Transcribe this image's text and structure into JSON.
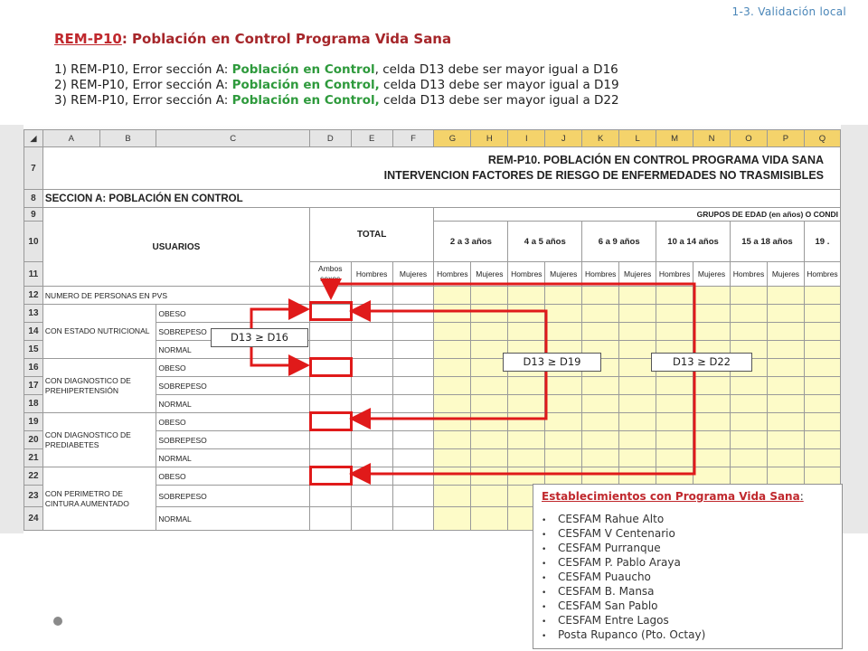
{
  "breadcrumb": "1-3. Validación local",
  "title": {
    "code": "REM-P10",
    "text": ": Población en Control Programa Vida Sana"
  },
  "errors": [
    {
      "prefix": "1) REM-P10, Error sección A: ",
      "highlight": "Población en Control",
      "suffix": ", celda D13 debe ser mayor igual a D16"
    },
    {
      "prefix": "2) REM-P10, Error sección A: ",
      "highlight": "Población en Control,",
      "suffix": " celda D13 debe ser mayor igual a D19"
    },
    {
      "prefix": "3) REM-P10, Error sección A: ",
      "highlight": "Población en Control,",
      "suffix": " celda D13 debe ser mayor igual a D22"
    }
  ],
  "sheet": {
    "columns": [
      "A",
      "B",
      "C",
      "D",
      "E",
      "F",
      "G",
      "H",
      "I",
      "J",
      "K",
      "L",
      "M",
      "N",
      "O",
      "P",
      "Q"
    ],
    "rows": [
      "7",
      "8",
      "9",
      "10",
      "11",
      "12",
      "13",
      "14",
      "15",
      "16",
      "17",
      "18",
      "19",
      "20",
      "21",
      "22",
      "23",
      "24"
    ],
    "title1": "REM-P10.   POBLACIÓN EN CONTROL PROGRAMA VIDA SANA",
    "title2": "INTERVENCION FACTORES DE RIESGO DE ENFERMEDADES NO TRASMISIBLES",
    "section": "SECCION A: POBLACIÓN EN CONTROL",
    "groups_header": "GRUPOS DE EDAD (en años) O CONDI",
    "usuarios": "USUARIOS",
    "total": "TOTAL",
    "ambos": "Ambos sexos",
    "hombres": "Hombres",
    "mujeres": "Mujeres",
    "age_groups": [
      "2 a 3 años",
      "4 a 5 años",
      "6 a 9 años",
      "10 a 14 años",
      "15 a 18 años",
      "19 ."
    ],
    "row12": "NUMERO DE PERSONAS EN PVS",
    "categories": [
      "CON ESTADO NUTRICIONAL",
      "CON DIAGNOSTICO DE PREHIPERTENSIÓN",
      "CON DIAGNOSTICO DE PREDIABETES",
      "CON PERIMETRO DE CINTURA AUMENTADO"
    ],
    "states": [
      "OBESO",
      "SOBREPESO",
      "NORMAL"
    ]
  },
  "conditions": [
    "D13  ≥  D16",
    "D13  ≥  D19",
    "D13  ≥  D22"
  ],
  "establishments": {
    "heading": "Establecimientos con Programa Vida Sana",
    "heading_suffix": ":",
    "items": [
      "CESFAM Rahue Alto",
      "CESFAM V Centenario",
      "CESFAM Purranque",
      "CESFAM P. Pablo Araya",
      "CESFAM Puaucho",
      "CESFAM B. Mansa",
      "CESFAM San Pablo",
      "CESFAM Entre Lagos",
      "Posta Rupanco (Pto. Octay)"
    ]
  },
  "colors": {
    "accent_red": "#e01a1a",
    "title_red": "#a6262a",
    "highlight_green": "#2e9a3c",
    "link_blue": "#4a86b8",
    "cell_yellow": "#fdfbc8"
  }
}
